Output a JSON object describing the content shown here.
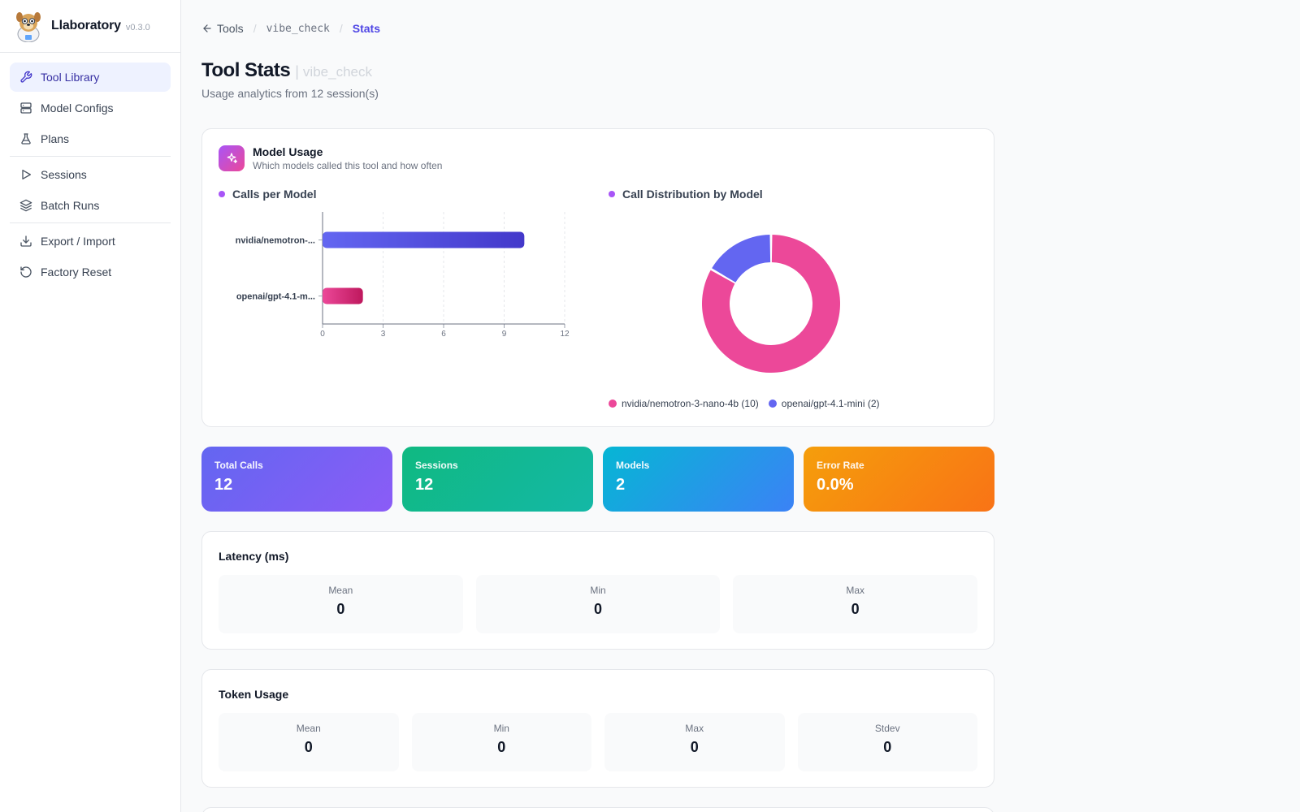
{
  "app": {
    "name": "Llaboratory",
    "version": "v0.3.0"
  },
  "sidebar": {
    "items": [
      {
        "label": "Tool Library",
        "icon": "wrench-icon",
        "active": true
      },
      {
        "label": "Model Configs",
        "icon": "server-icon"
      },
      {
        "label": "Plans",
        "icon": "flask-icon"
      },
      {
        "label": "Sessions",
        "icon": "play-icon"
      },
      {
        "label": "Batch Runs",
        "icon": "layers-icon"
      },
      {
        "label": "Export / Import",
        "icon": "download-icon"
      },
      {
        "label": "Factory Reset",
        "icon": "reset-icon"
      }
    ]
  },
  "breadcrumb": {
    "back": "Tools",
    "tool": "vibe_check",
    "current": "Stats"
  },
  "header": {
    "title": "Tool Stats",
    "tool": "vibe_check",
    "subtitle": "Usage analytics from 12 session(s)"
  },
  "model_usage": {
    "title": "Model Usage",
    "subtitle": "Which models called this tool and how often",
    "bar_label": "Calls per Model",
    "donut_label": "Call Distribution by Model"
  },
  "colors": {
    "accent": "#4f46e5",
    "pink": "#ec4899",
    "indigo": "#6366f1"
  },
  "chart_data": [
    {
      "type": "bar",
      "orientation": "horizontal",
      "title": "Calls per Model",
      "categories": [
        "nvidia/nemotron-...",
        "openai/gpt-4.1-m..."
      ],
      "values": [
        10,
        2
      ],
      "xlim": [
        0,
        12
      ],
      "xticks": [
        "0",
        "3",
        "6",
        "9",
        "12"
      ],
      "grid": true
    },
    {
      "type": "pie",
      "title": "Call Distribution by Model",
      "labels": [
        "nvidia/nemotron-3-nano-4b (10)",
        "openai/gpt-4.1-mini (2)"
      ],
      "values": [
        10,
        2
      ],
      "colors": [
        "#ec4899",
        "#6366f1"
      ]
    }
  ],
  "tiles": [
    {
      "label": "Total Calls",
      "value": "12"
    },
    {
      "label": "Sessions",
      "value": "12"
    },
    {
      "label": "Models",
      "value": "2"
    },
    {
      "label": "Error Rate",
      "value": "0.0%"
    }
  ],
  "latency": {
    "title": "Latency (ms)",
    "stats": [
      {
        "label": "Mean",
        "value": "0"
      },
      {
        "label": "Min",
        "value": "0"
      },
      {
        "label": "Max",
        "value": "0"
      }
    ]
  },
  "tokens": {
    "title": "Token Usage",
    "stats": [
      {
        "label": "Mean",
        "value": "0"
      },
      {
        "label": "Min",
        "value": "0"
      },
      {
        "label": "Max",
        "value": "0"
      },
      {
        "label": "Stdev",
        "value": "0"
      }
    ]
  }
}
